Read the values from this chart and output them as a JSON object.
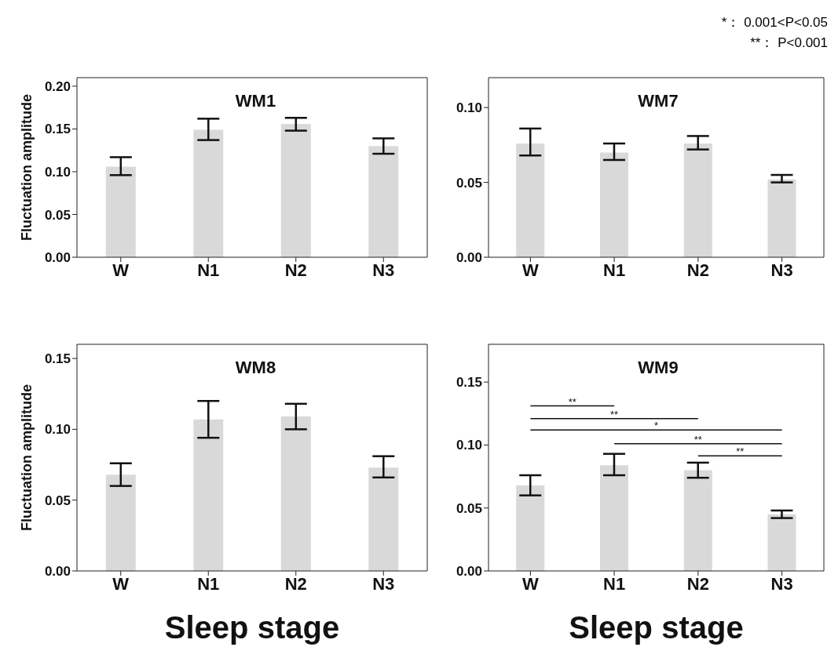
{
  "chart_data": [
    {
      "type": "bar",
      "title": "WM1",
      "ylabel": "Fluctuation amplitude",
      "categories": [
        "W",
        "N1",
        "N2",
        "N3"
      ],
      "values": [
        0.106,
        0.149,
        0.156,
        0.13
      ],
      "errors": [
        [
          0.096,
          0.117
        ],
        [
          0.137,
          0.162
        ],
        [
          0.148,
          0.163
        ],
        [
          0.121,
          0.139
        ]
      ],
      "color": "#d9d9d9",
      "ylim": [
        0,
        0.21
      ],
      "yticks": [
        {
          "value": 0,
          "label": "0.00"
        },
        {
          "value": 0.05,
          "label": "0.05"
        },
        {
          "value": 0.1,
          "label": "0.10"
        },
        {
          "value": 0.15,
          "label": "0.15"
        },
        {
          "value": 0.2,
          "label": "0.20"
        }
      ]
    },
    {
      "type": "bar",
      "title": "WM7",
      "categories": [
        "W",
        "N1",
        "N2",
        "N3"
      ],
      "values": [
        0.076,
        0.07,
        0.076,
        0.052
      ],
      "errors": [
        [
          0.068,
          0.086
        ],
        [
          0.065,
          0.076
        ],
        [
          0.072,
          0.081
        ],
        [
          0.05,
          0.055
        ]
      ],
      "color": "#d9d9d9",
      "ylim": [
        0,
        0.12
      ],
      "yticks": [
        {
          "value": 0,
          "label": "0.00"
        },
        {
          "value": 0.05,
          "label": "0.05"
        },
        {
          "value": 0.1,
          "label": "0.10"
        }
      ],
      "annotations": [
        "*： 0.001<P<0.05",
        "**： P<0.001"
      ]
    },
    {
      "type": "bar",
      "title": "WM8",
      "ylabel": "Fluctuation amplitude",
      "xlabel": "Sleep stage",
      "categories": [
        "W",
        "N1",
        "N2",
        "N3"
      ],
      "values": [
        0.068,
        0.107,
        0.109,
        0.073
      ],
      "errors": [
        [
          0.06,
          0.076
        ],
        [
          0.094,
          0.12
        ],
        [
          0.1,
          0.118
        ],
        [
          0.066,
          0.081
        ]
      ],
      "color": "#d9d9d9",
      "ylim": [
        0,
        0.16
      ],
      "yticks": [
        {
          "value": 0,
          "label": "0.00"
        },
        {
          "value": 0.05,
          "label": "0.05"
        },
        {
          "value": 0.1,
          "label": "0.10"
        },
        {
          "value": 0.15,
          "label": "0.15"
        }
      ]
    },
    {
      "type": "bar",
      "title": "WM9",
      "xlabel": "Sleep stage",
      "categories": [
        "W",
        "N1",
        "N2",
        "N3"
      ],
      "values": [
        0.068,
        0.084,
        0.08,
        0.045
      ],
      "errors": [
        [
          0.06,
          0.076
        ],
        [
          0.076,
          0.093
        ],
        [
          0.074,
          0.086
        ],
        [
          0.042,
          0.048
        ]
      ],
      "color": "#d9d9d9",
      "ylim": [
        0,
        0.18
      ],
      "yticks": [
        {
          "value": 0,
          "label": "0.00"
        },
        {
          "value": 0.05,
          "label": "0.05"
        },
        {
          "value": 0.1,
          "label": "0.10"
        },
        {
          "value": 0.15,
          "label": "0.15"
        }
      ],
      "annotations": [
        "**",
        "**",
        "*",
        "**",
        "**"
      ]
    }
  ]
}
